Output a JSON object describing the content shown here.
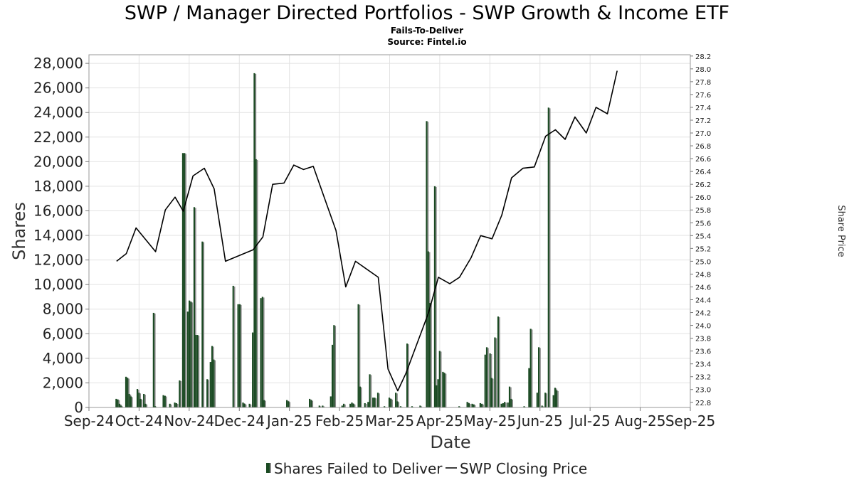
{
  "chart_data": {
    "type": "bar",
    "title": "SWP / Manager Directed Portfolios - SWP Growth & Income ETF",
    "subtitle": "Fails-To-Deliver",
    "source": "Source: Fintel.io",
    "xlabel": "Date",
    "ylabel": "Shares",
    "y2label": "Share Price",
    "ylim": [
      0,
      28700
    ],
    "y2lim": [
      22.72,
      28.22
    ],
    "y_ticks": [
      "0",
      "2,000",
      "4,000",
      "6,000",
      "8,000",
      "10,000",
      "12,000",
      "14,000",
      "16,000",
      "18,000",
      "20,000",
      "22,000",
      "24,000",
      "26,000",
      "28,000"
    ],
    "y_tick_values": [
      0,
      2000,
      4000,
      6000,
      8000,
      10000,
      12000,
      14000,
      16000,
      18000,
      20000,
      22000,
      24000,
      26000,
      28000
    ],
    "y2_ticks": [
      "22.8",
      "23.0",
      "23.2",
      "23.4",
      "23.6",
      "23.8",
      "24.0",
      "24.2",
      "24.4",
      "24.6",
      "24.8",
      "25.0",
      "25.2",
      "25.4",
      "25.6",
      "25.8",
      "26.0",
      "26.2",
      "26.4",
      "26.6",
      "26.8",
      "27.0",
      "27.2",
      "27.4",
      "27.6",
      "27.8",
      "28.0",
      "28.2"
    ],
    "x_ticks": [
      "Sep-24",
      "Oct-24",
      "Nov-24",
      "Dec-24",
      "Jan-25",
      "Feb-25",
      "Mar-25",
      "Apr-25",
      "May-25",
      "Jun-25",
      "Jul-25",
      "Aug-25",
      "Sep-25"
    ],
    "x_range_days": [
      0,
      370
    ],
    "grid": true,
    "legend_position": "bottom",
    "series": [
      {
        "name": "Shares Failed to Deliver",
        "type": "bar",
        "color": "#1a4a22",
        "points": [
          {
            "day": 17,
            "value": 700
          },
          {
            "day": 18,
            "value": 650
          },
          {
            "day": 19,
            "value": 300
          },
          {
            "day": 20,
            "value": 150
          },
          {
            "day": 23,
            "value": 2500
          },
          {
            "day": 24,
            "value": 2400
          },
          {
            "day": 25,
            "value": 1100
          },
          {
            "day": 26,
            "value": 900
          },
          {
            "day": 30,
            "value": 1500
          },
          {
            "day": 31,
            "value": 1200
          },
          {
            "day": 32,
            "value": 700
          },
          {
            "day": 34,
            "value": 1100
          },
          {
            "day": 35,
            "value": 300
          },
          {
            "day": 40,
            "value": 7700
          },
          {
            "day": 41,
            "value": 100
          },
          {
            "day": 46,
            "value": 1000
          },
          {
            "day": 47,
            "value": 950
          },
          {
            "day": 50,
            "value": 300
          },
          {
            "day": 53,
            "value": 400
          },
          {
            "day": 54,
            "value": 350
          },
          {
            "day": 56,
            "value": 2200
          },
          {
            "day": 58,
            "value": 20700
          },
          {
            "day": 59,
            "value": 20700
          },
          {
            "day": 61,
            "value": 7800
          },
          {
            "day": 62,
            "value": 8700
          },
          {
            "day": 63,
            "value": 8600
          },
          {
            "day": 65,
            "value": 16300
          },
          {
            "day": 66,
            "value": 5900
          },
          {
            "day": 67,
            "value": 5900
          },
          {
            "day": 70,
            "value": 13500
          },
          {
            "day": 73,
            "value": 2300
          },
          {
            "day": 75,
            "value": 3700
          },
          {
            "day": 76,
            "value": 5000
          },
          {
            "day": 77,
            "value": 3900
          },
          {
            "day": 89,
            "value": 9900
          },
          {
            "day": 92,
            "value": 8400
          },
          {
            "day": 93,
            "value": 8400
          },
          {
            "day": 95,
            "value": 400
          },
          {
            "day": 96,
            "value": 300
          },
          {
            "day": 99,
            "value": 300
          },
          {
            "day": 101,
            "value": 6100
          },
          {
            "day": 102,
            "value": 27200
          },
          {
            "day": 103,
            "value": 20200
          },
          {
            "day": 106,
            "value": 8900
          },
          {
            "day": 107,
            "value": 9000
          },
          {
            "day": 108,
            "value": 600
          },
          {
            "day": 122,
            "value": 600
          },
          {
            "day": 123,
            "value": 500
          },
          {
            "day": 136,
            "value": 700
          },
          {
            "day": 137,
            "value": 600
          },
          {
            "day": 142,
            "value": 150
          },
          {
            "day": 144,
            "value": 150
          },
          {
            "day": 149,
            "value": 900
          },
          {
            "day": 150,
            "value": 5100
          },
          {
            "day": 151,
            "value": 6700
          },
          {
            "day": 156,
            "value": 150
          },
          {
            "day": 157,
            "value": 300
          },
          {
            "day": 161,
            "value": 300
          },
          {
            "day": 162,
            "value": 400
          },
          {
            "day": 163,
            "value": 300
          },
          {
            "day": 166,
            "value": 8400
          },
          {
            "day": 167,
            "value": 1700
          },
          {
            "day": 170,
            "value": 350
          },
          {
            "day": 172,
            "value": 450
          },
          {
            "day": 173,
            "value": 2700
          },
          {
            "day": 175,
            "value": 800
          },
          {
            "day": 176,
            "value": 800
          },
          {
            "day": 178,
            "value": 1200
          },
          {
            "day": 182,
            "value": 100
          },
          {
            "day": 185,
            "value": 800
          },
          {
            "day": 186,
            "value": 700
          },
          {
            "day": 189,
            "value": 1200
          },
          {
            "day": 190,
            "value": 500
          },
          {
            "day": 192,
            "value": 100
          },
          {
            "day": 196,
            "value": 5200
          },
          {
            "day": 199,
            "value": 100
          },
          {
            "day": 204,
            "value": 150
          },
          {
            "day": 208,
            "value": 23300
          },
          {
            "day": 209,
            "value": 12700
          },
          {
            "day": 210,
            "value": 8500
          },
          {
            "day": 213,
            "value": 18000
          },
          {
            "day": 214,
            "value": 1800
          },
          {
            "day": 215,
            "value": 2300
          },
          {
            "day": 216,
            "value": 4600
          },
          {
            "day": 218,
            "value": 2900
          },
          {
            "day": 219,
            "value": 2800
          },
          {
            "day": 228,
            "value": 100
          },
          {
            "day": 233,
            "value": 450
          },
          {
            "day": 234,
            "value": 350
          },
          {
            "day": 236,
            "value": 300
          },
          {
            "day": 237,
            "value": 250
          },
          {
            "day": 241,
            "value": 350
          },
          {
            "day": 242,
            "value": 300
          },
          {
            "day": 244,
            "value": 4300
          },
          {
            "day": 245,
            "value": 4900
          },
          {
            "day": 247,
            "value": 4400
          },
          {
            "day": 248,
            "value": 2400
          },
          {
            "day": 250,
            "value": 5700
          },
          {
            "day": 252,
            "value": 7400
          },
          {
            "day": 254,
            "value": 300
          },
          {
            "day": 255,
            "value": 350
          },
          {
            "day": 256,
            "value": 450
          },
          {
            "day": 258,
            "value": 400
          },
          {
            "day": 259,
            "value": 1700
          },
          {
            "day": 260,
            "value": 700
          },
          {
            "day": 268,
            "value": 100
          },
          {
            "day": 271,
            "value": 3200
          },
          {
            "day": 272,
            "value": 6400
          },
          {
            "day": 276,
            "value": 1200
          },
          {
            "day": 277,
            "value": 4900
          },
          {
            "day": 279,
            "value": 150
          },
          {
            "day": 281,
            "value": 1200
          },
          {
            "day": 283,
            "value": 24400
          },
          {
            "day": 286,
            "value": 1000
          },
          {
            "day": 287,
            "value": 1600
          },
          {
            "day": 288,
            "value": 1400
          }
        ]
      },
      {
        "name": "SWP Closing Price",
        "type": "line",
        "color": "#000000",
        "points": [
          {
            "day": 17,
            "price": 25.0
          },
          {
            "day": 23,
            "price": 25.12
          },
          {
            "day": 29,
            "price": 25.52
          },
          {
            "day": 41,
            "price": 25.15
          },
          {
            "day": 47,
            "price": 25.8
          },
          {
            "day": 53,
            "price": 26.0
          },
          {
            "day": 58,
            "price": 25.78
          },
          {
            "day": 64,
            "price": 26.33
          },
          {
            "day": 71,
            "price": 26.45
          },
          {
            "day": 77,
            "price": 26.13
          },
          {
            "day": 84,
            "price": 25.0
          },
          {
            "day": 101,
            "price": 25.18
          },
          {
            "day": 107,
            "price": 25.38
          },
          {
            "day": 113,
            "price": 26.2
          },
          {
            "day": 120,
            "price": 26.22
          },
          {
            "day": 126,
            "price": 26.5
          },
          {
            "day": 132,
            "price": 26.43
          },
          {
            "day": 138,
            "price": 26.48
          },
          {
            "day": 145,
            "price": 25.98
          },
          {
            "day": 152,
            "price": 25.48
          },
          {
            "day": 158,
            "price": 24.6
          },
          {
            "day": 164,
            "price": 25.0
          },
          {
            "day": 178,
            "price": 24.75
          },
          {
            "day": 184,
            "price": 23.32
          },
          {
            "day": 190,
            "price": 22.98
          },
          {
            "day": 195,
            "price": 23.25
          },
          {
            "day": 209,
            "price": 24.2
          },
          {
            "day": 215,
            "price": 24.75
          },
          {
            "day": 222,
            "price": 24.65
          },
          {
            "day": 228,
            "price": 24.75
          },
          {
            "day": 235,
            "price": 25.05
          },
          {
            "day": 241,
            "price": 25.4
          },
          {
            "day": 248,
            "price": 25.35
          },
          {
            "day": 254,
            "price": 25.72
          },
          {
            "day": 260,
            "price": 26.3
          },
          {
            "day": 267,
            "price": 26.45
          },
          {
            "day": 274,
            "price": 26.47
          },
          {
            "day": 281,
            "price": 26.95
          },
          {
            "day": 287,
            "price": 27.05
          },
          {
            "day": 293,
            "price": 26.9
          },
          {
            "day": 299,
            "price": 27.25
          },
          {
            "day": 306,
            "price": 27.0
          },
          {
            "day": 312,
            "price": 27.4
          },
          {
            "day": 319,
            "price": 27.3
          },
          {
            "day": 325,
            "price": 27.97
          }
        ]
      }
    ]
  },
  "legend": {
    "bars_label": "Shares Failed to Deliver",
    "line_label": "SWP Closing Price"
  }
}
